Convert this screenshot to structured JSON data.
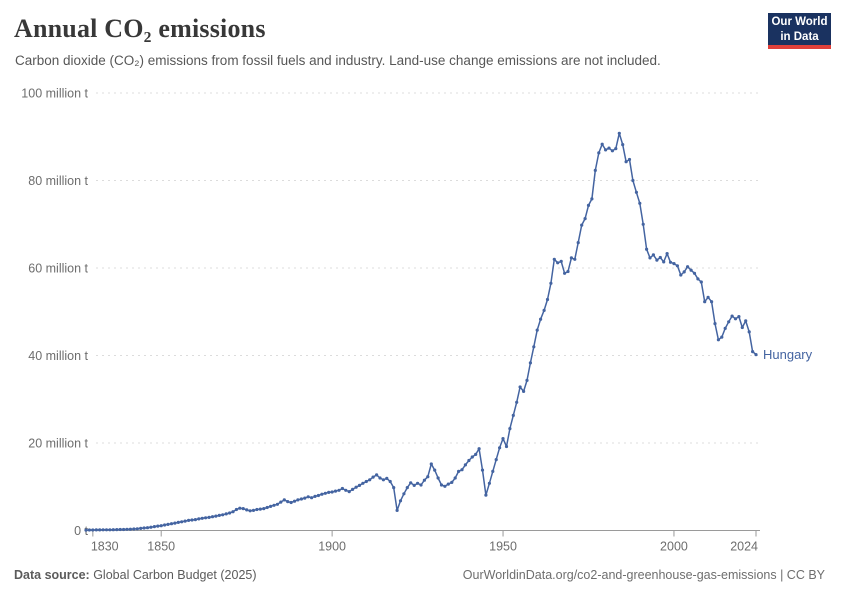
{
  "header": {
    "title": "Annual CO₂ emissions",
    "subtitle": "Carbon dioxide (CO₂) emissions from fossil fuels and industry. Land-use change emissions are not included.",
    "logo": {
      "line1": "Our World",
      "line2": "in Data"
    }
  },
  "footer": {
    "datasource_label": "Data source:",
    "datasource_value": " Global Carbon Budget (2025)",
    "link_text": "OurWorldinData.org/co2-and-greenhouse-gas-emissions | CC BY"
  },
  "colors": {
    "line": "#4464a1",
    "entity_label": "#4464a1",
    "gridline": "#dcdcdc",
    "axis": "#9a9a9a",
    "tick_label": "#6d6d6d",
    "logo_bg": "#1a3260",
    "logo_accent": "#e0403a"
  },
  "chart_data": {
    "type": "line",
    "title": "Annual CO₂ emissions",
    "unit": "million t",
    "grid": "dashed-horizontal",
    "legend_position": "end-of-line-label",
    "xlim": [
      1828,
      2024
    ],
    "ylim": [
      0,
      100
    ],
    "x_ticks": [
      1830,
      1850,
      1900,
      1950,
      2000,
      2024
    ],
    "y_ticks": [
      {
        "v": 0,
        "label": "0 t"
      },
      {
        "v": 20,
        "label": "20 million t"
      },
      {
        "v": 40,
        "label": "40 million t"
      },
      {
        "v": 60,
        "label": "60 million t"
      },
      {
        "v": 80,
        "label": "80 million t"
      },
      {
        "v": 100,
        "label": "100 million t"
      }
    ],
    "series": [
      {
        "name": "Hungary",
        "start_year": 1828,
        "end_year": 2024,
        "values": [
          0.1,
          0.11,
          0.12,
          0.13,
          0.14,
          0.15,
          0.16,
          0.17,
          0.18,
          0.2,
          0.22,
          0.24,
          0.27,
          0.3,
          0.35,
          0.4,
          0.48,
          0.56,
          0.65,
          0.75,
          0.88,
          1.0,
          1.1,
          1.25,
          1.4,
          1.55,
          1.7,
          1.85,
          2.0,
          2.15,
          2.3,
          2.4,
          2.5,
          2.65,
          2.8,
          2.9,
          3.0,
          3.15,
          3.3,
          3.45,
          3.6,
          3.8,
          4.0,
          4.3,
          4.8,
          5.1,
          5.0,
          4.7,
          4.5,
          4.6,
          4.8,
          4.9,
          5.0,
          5.25,
          5.5,
          5.75,
          6.0,
          6.5,
          7.0,
          6.6,
          6.4,
          6.7,
          7.0,
          7.2,
          7.4,
          7.7,
          7.5,
          7.8,
          8.0,
          8.3,
          8.5,
          8.7,
          8.8,
          9.0,
          9.2,
          9.6,
          9.2,
          8.9,
          9.4,
          9.9,
          10.3,
          10.8,
          11.2,
          11.6,
          12.2,
          12.7,
          12.0,
          11.6,
          11.9,
          11.2,
          9.8,
          4.6,
          6.8,
          8.4,
          9.8,
          10.9,
          10.3,
          10.8,
          10.4,
          11.5,
          12.3,
          15.2,
          13.8,
          12.0,
          10.4,
          10.1,
          10.6,
          11.0,
          12.0,
          13.5,
          13.9,
          15.0,
          16.0,
          16.8,
          17.4,
          18.7,
          13.8,
          8.1,
          10.8,
          13.5,
          16.2,
          18.9,
          21.0,
          19.2,
          23.3,
          26.3,
          29.3,
          32.8,
          31.8,
          34.3,
          38.3,
          42.0,
          45.8,
          48.3,
          50.3,
          52.8,
          56.5,
          62.0,
          61.2,
          61.5,
          58.8,
          59.2,
          62.3,
          62.0,
          65.8,
          69.8,
          71.3,
          74.3,
          75.8,
          82.3,
          86.3,
          88.3,
          87.0,
          87.4,
          86.8,
          87.3,
          90.8,
          88.2,
          84.3,
          84.8,
          80.0,
          77.3,
          74.8,
          70.0,
          64.3,
          62.3,
          63.0,
          61.8,
          62.4,
          61.4,
          63.3,
          61.3,
          61.0,
          60.5,
          58.4,
          59.1,
          60.3,
          59.5,
          58.8,
          57.5,
          56.8,
          52.3,
          53.3,
          52.3,
          47.3,
          43.6,
          44.2,
          46.2,
          47.7,
          49.0,
          48.4,
          48.9,
          46.4,
          47.9,
          45.4,
          40.9,
          40.2
        ]
      }
    ]
  }
}
